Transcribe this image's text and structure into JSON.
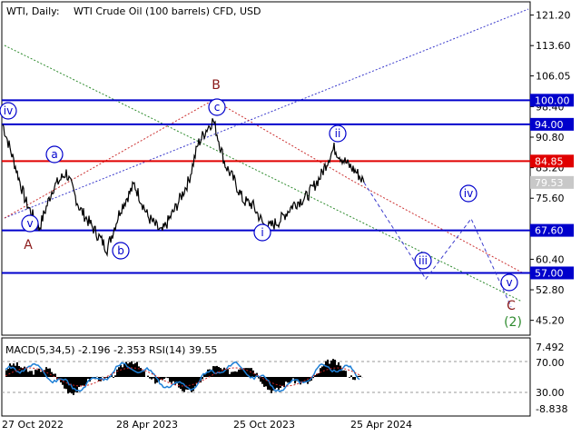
{
  "header": {
    "symbol": "WTI, Daily:",
    "description": "WTI Crude Oil (100 barrels) CFD, USD"
  },
  "indicator": {
    "label": "MACD(5,34,5) -2.196 -2.353 RSI(14) 39.55",
    "scale_labels": [
      "7.492",
      "70.00",
      "30.00",
      "-8.838"
    ]
  },
  "x_axis": {
    "labels": [
      "27 Oct 2022",
      "28 Apr 2023",
      "25 Oct 2023",
      "25 Apr 2024"
    ]
  },
  "chart_data": {
    "type": "line",
    "ylim": [
      41.5,
      124.5
    ],
    "y_ticks": [
      121.2,
      113.6,
      106.05,
      98.4,
      90.8,
      83.2,
      75.6,
      68.0,
      60.4,
      52.8,
      45.2
    ],
    "y_tick_labels": [
      "121.20",
      "113.60",
      "106.05",
      "98.40",
      "90.80",
      "83.20",
      "75.60",
      "68.00",
      "60.40",
      "52.80",
      "45.20"
    ],
    "last_price": 79.53,
    "last_price_label": "79.53",
    "levels": [
      {
        "value": 100.0,
        "label": "100.00",
        "color": "#0000cc"
      },
      {
        "value": 94.0,
        "label": "94.00",
        "color": "#0000cc"
      },
      {
        "value": 84.85,
        "label": "84.85",
        "color": "#e00000"
      },
      {
        "value": 67.6,
        "label": "67.60",
        "color": "#0000cc"
      },
      {
        "value": 57.0,
        "label": "57.00",
        "color": "#0000cc"
      }
    ],
    "series": [
      {
        "x": [
          0,
          12,
          25,
          40,
          55,
          70,
          85,
          100,
          115,
          130,
          145,
          160,
          175,
          190,
          205,
          215,
          225,
          232,
          238,
          245,
          255,
          265,
          275,
          290,
          305,
          320,
          335,
          350,
          360,
          365,
          372,
          380,
          390,
          398
        ],
        "values": [
          94,
          85,
          75,
          68,
          78,
          82,
          73,
          68,
          63,
          73,
          79,
          71,
          67,
          73,
          80,
          89,
          93,
          95,
          90,
          84,
          80,
          75,
          74,
          68,
          70,
          74,
          76,
          81,
          86,
          88,
          86,
          84,
          82,
          79.5
        ]
      }
    ],
    "forecast": [
      {
        "x": 398,
        "value": 79.5
      },
      {
        "x": 466,
        "value": 55.5
      },
      {
        "x": 516,
        "value": 70.5
      },
      {
        "x": 560,
        "value": 48.5
      }
    ],
    "wave_labels": [
      {
        "text": "iv",
        "circled": true,
        "color": "#0000cc"
      },
      {
        "text": "a",
        "circled": true,
        "color": "#0000cc"
      },
      {
        "text": "v",
        "circled": true,
        "color": "#0000cc"
      },
      {
        "text": "A",
        "circled": false,
        "color": "#8b1a1a"
      },
      {
        "text": "b",
        "circled": true,
        "color": "#0000cc"
      },
      {
        "text": "B",
        "circled": false,
        "color": "#8b1a1a"
      },
      {
        "text": "c",
        "circled": true,
        "color": "#0000cc"
      },
      {
        "text": "ii",
        "circled": true,
        "color": "#0000cc"
      },
      {
        "text": "i",
        "circled": true,
        "color": "#0000cc"
      },
      {
        "text": "iii",
        "circled": true,
        "color": "#0000cc"
      },
      {
        "text": "iv",
        "circled": true,
        "color": "#0000cc"
      },
      {
        "text": "v",
        "circled": true,
        "color": "#0000cc"
      },
      {
        "text": "C",
        "circled": false,
        "color": "#8b1a1a"
      },
      {
        "text": "(2)",
        "circled": false,
        "color": "#2e8b2e"
      }
    ]
  }
}
